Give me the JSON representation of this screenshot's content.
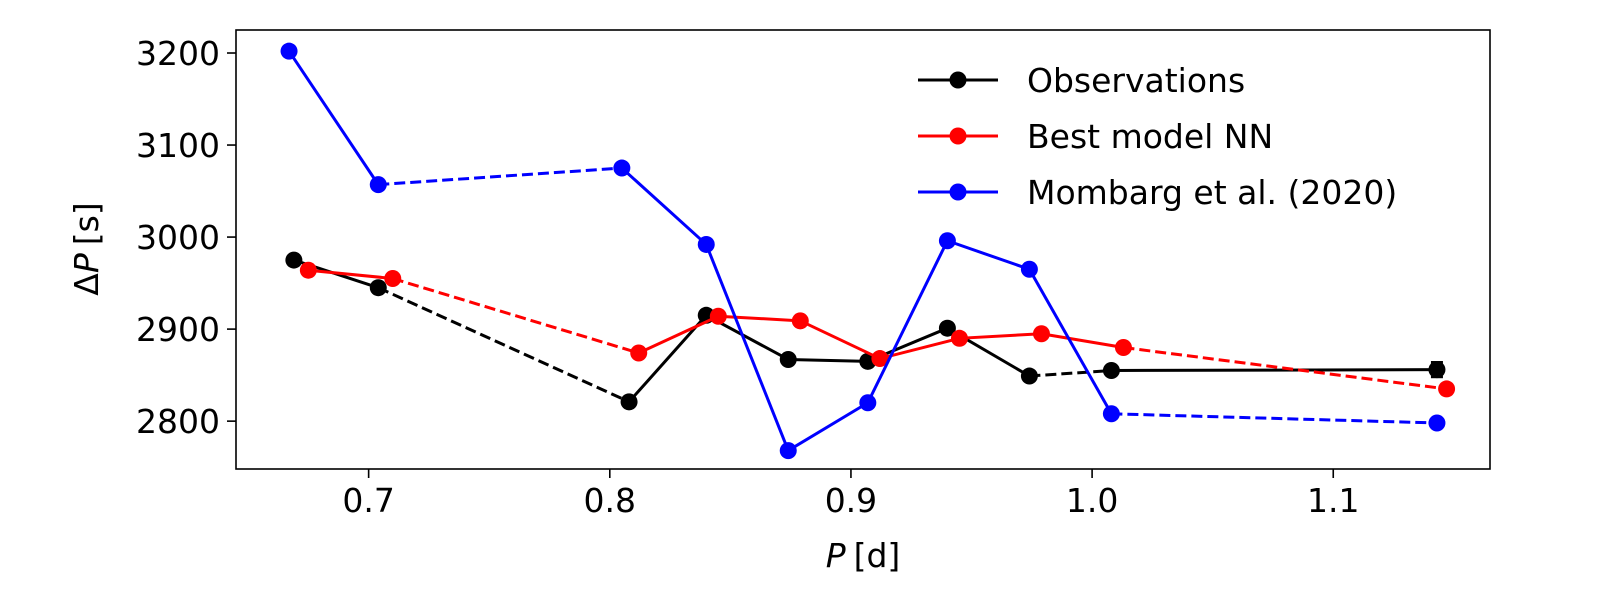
{
  "chart_data": {
    "type": "line",
    "title": "",
    "xlabel": {
      "var": "P",
      "unit": "[d]"
    },
    "ylabel": {
      "prefix": "Δ",
      "var": "P",
      "unit": "[s]"
    },
    "xlim": [
      0.645,
      1.165
    ],
    "ylim": [
      2748,
      3225
    ],
    "xticks": [
      0.7,
      0.8,
      0.9,
      1.0,
      1.1
    ],
    "xtick_labels": [
      "0.7",
      "0.8",
      "0.9",
      "1.0",
      "1.1"
    ],
    "yticks": [
      2800,
      2900,
      3000,
      3100,
      3200
    ],
    "ytick_labels": [
      "2800",
      "2900",
      "3000",
      "3100",
      "3200"
    ],
    "legend_position": "top-right",
    "series": [
      {
        "name": "Observations",
        "color": "#000000",
        "x": [
          0.669,
          0.704,
          0.808,
          0.84,
          0.874,
          0.907,
          0.94,
          0.974,
          1.008,
          1.143
        ],
        "y": [
          2975,
          2945,
          2821,
          2915,
          2867,
          2865,
          2901,
          2849,
          2855,
          2856
        ],
        "dashed_segments": [
          1,
          7
        ],
        "error": [
          0,
          0,
          0,
          0,
          0,
          0,
          0,
          0,
          0,
          8
        ]
      },
      {
        "name": "Best model NN",
        "color": "#ff0000",
        "x": [
          0.675,
          0.71,
          0.812,
          0.845,
          0.879,
          0.912,
          0.945,
          0.979,
          1.013,
          1.147
        ],
        "y": [
          2964,
          2955,
          2874,
          2914,
          2909,
          2868,
          2890,
          2895,
          2880,
          2835
        ],
        "dashed_segments": [
          1,
          8
        ],
        "error": []
      },
      {
        "name": "Mombarg et al. (2020)",
        "color": "#0000ff",
        "x": [
          0.667,
          0.704,
          0.805,
          0.84,
          0.874,
          0.907,
          0.94,
          0.974,
          1.008,
          1.143
        ],
        "y": [
          3202,
          3057,
          3075,
          2992,
          2768,
          2820,
          2996,
          2965,
          2808,
          2798
        ],
        "dashed_segments": [
          1,
          8
        ],
        "error": []
      }
    ]
  }
}
